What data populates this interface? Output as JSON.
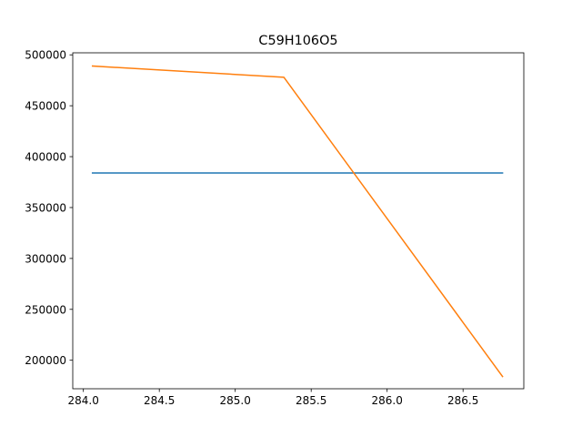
{
  "chart_data": {
    "type": "line",
    "title": "C59H106O5",
    "xlabel": "",
    "ylabel": "",
    "xlim": [
      283.93,
      286.9
    ],
    "ylim": [
      172000,
      502000
    ],
    "xticks": [
      284.0,
      284.5,
      285.0,
      285.5,
      286.0,
      286.5
    ],
    "xtick_labels": [
      "284.0",
      "284.5",
      "285.0",
      "285.5",
      "286.0",
      "286.5"
    ],
    "yticks": [
      200000,
      250000,
      300000,
      350000,
      400000,
      450000,
      500000
    ],
    "ytick_labels": [
      "200000",
      "250000",
      "300000",
      "350000",
      "400000",
      "450000",
      "500000"
    ],
    "grid": false,
    "series": [
      {
        "color": "#1f77b4",
        "x": [
          284.06,
          286.76
        ],
        "y": [
          384000,
          384000
        ]
      },
      {
        "color": "#ff7f0e",
        "x": [
          284.06,
          285.32,
          286.76
        ],
        "y": [
          489000,
          478000,
          184000
        ]
      }
    ]
  }
}
